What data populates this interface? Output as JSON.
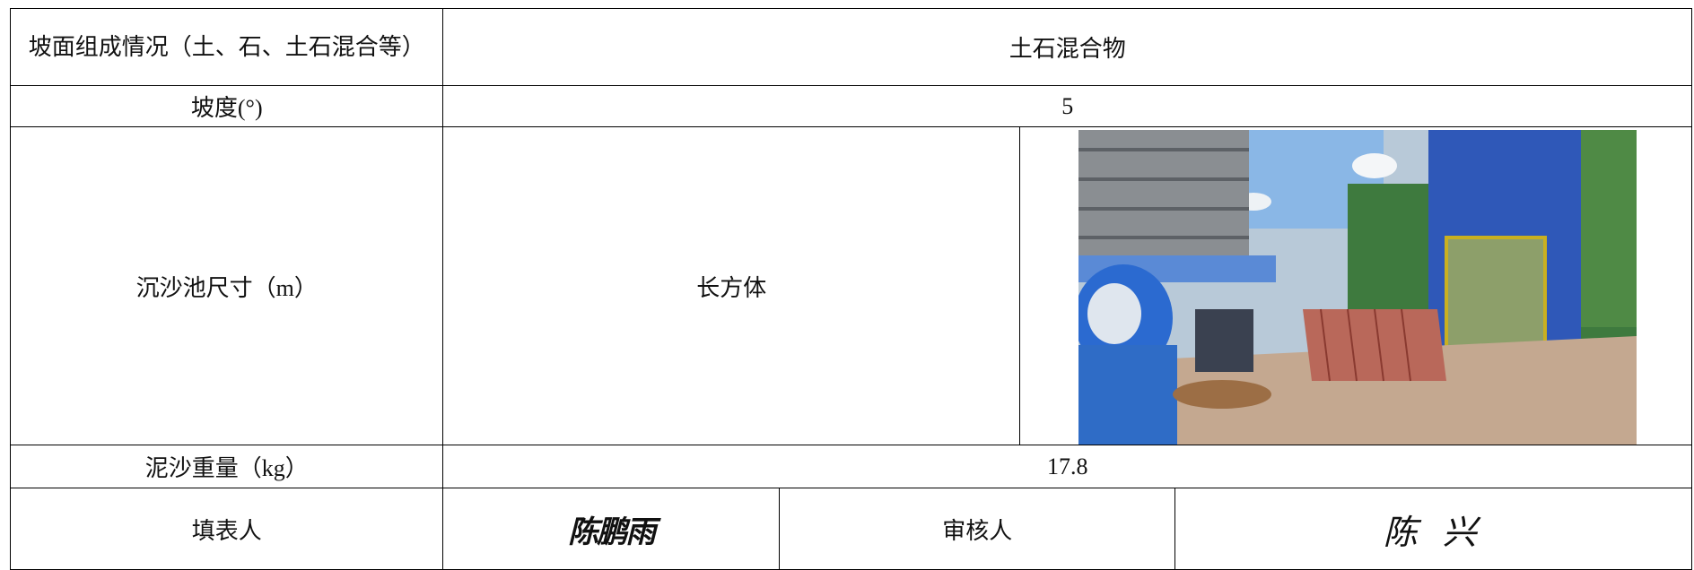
{
  "table": {
    "rows": [
      [
        "坡面组成情况（土、石、土石混合等）",
        "土石混合物"
      ],
      [
        "坡度(°)",
        "5"
      ],
      [
        "沉沙池尺寸（m）",
        "长方体"
      ],
      [
        "泥沙重量（kg）",
        "17.8"
      ],
      [
        "填表人",
        "陈鹏雨",
        "审核人",
        "陈 兴"
      ]
    ]
  }
}
